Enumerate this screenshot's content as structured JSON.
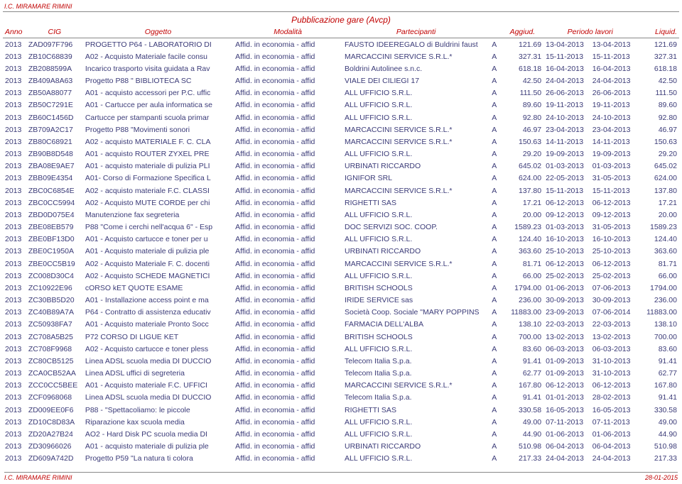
{
  "org": "I.C. MIRAMARE RIMINI",
  "title": "Pubblicazione gare (Avcp)",
  "footer_date": "28-01-2015",
  "columns": [
    "Anno",
    "CIG",
    "Oggetto",
    "Modalità",
    "Partecipanti",
    "",
    "Aggiud.",
    "Periodo lavori",
    "",
    "Liquid."
  ],
  "rows": [
    {
      "anno": "2013",
      "cig": "ZAD097F796",
      "ogg": "PROGETTO P64 - LABORATORIO DI",
      "mod": "Affid. in economia - affid",
      "part": "FAUSTO IDEEREGALO di Buldrini faust",
      "agg": "A",
      "aggv": "121.69",
      "d1": "13-04-2013",
      "d2": "13-04-2013",
      "liq": "121.69"
    },
    {
      "anno": "2013",
      "cig": "ZB10C68839",
      "ogg": "A02 - Acquisto Materiale facile consu",
      "mod": "Affid. in economia - affid",
      "part": "MARCACCINI SERVICE S.R.L.*",
      "agg": "A",
      "aggv": "327.31",
      "d1": "15-11-2013",
      "d2": "15-11-2013",
      "liq": "327.31"
    },
    {
      "anno": "2013",
      "cig": "ZB2088599A",
      "ogg": "Incarico trasporto visita guidata a Rav",
      "mod": "Affid. in economia - affid",
      "part": "Boldrini Autolinee s.n.c.",
      "agg": "A",
      "aggv": "618.18",
      "d1": "16-04-2013",
      "d2": "16-04-2013",
      "liq": "618.18"
    },
    {
      "anno": "2013",
      "cig": "ZB409A8A63",
      "ogg": "Progetto P88 &quot; BIBLIOTECA SC",
      "mod": "Affid. in economia - affid",
      "part": "VIALE DEI CILIEGI 17",
      "agg": "A",
      "aggv": "42.50",
      "d1": "24-04-2013",
      "d2": "24-04-2013",
      "liq": "42.50"
    },
    {
      "anno": "2013",
      "cig": "ZB50A88077",
      "ogg": "A01 - acquisto accessori per P.C. uffic",
      "mod": "Affid. in economia - affid",
      "part": "ALL UFFICIO S.R.L.",
      "agg": "A",
      "aggv": "111.50",
      "d1": "26-06-2013",
      "d2": "26-06-2013",
      "liq": "111.50"
    },
    {
      "anno": "2013",
      "cig": "ZB50C7291E",
      "ogg": "A01 - Cartucce per aula informatica se",
      "mod": "Affid. in economia - affid",
      "part": "ALL UFFICIO S.R.L.",
      "agg": "A",
      "aggv": "89.60",
      "d1": "19-11-2013",
      "d2": "19-11-2013",
      "liq": "89.60"
    },
    {
      "anno": "2013",
      "cig": "ZB60C1456D",
      "ogg": "Cartucce per stampanti scuola primar",
      "mod": "Affid. in economia - affid",
      "part": "ALL UFFICIO S.R.L.",
      "agg": "A",
      "aggv": "92.80",
      "d1": "24-10-2013",
      "d2": "24-10-2013",
      "liq": "92.80"
    },
    {
      "anno": "2013",
      "cig": "ZB709A2C17",
      "ogg": "Progetto P88 &quot;Movimenti sonori",
      "mod": "Affid. in economia - affid",
      "part": "MARCACCINI SERVICE S.R.L.*",
      "agg": "A",
      "aggv": "46.97",
      "d1": "23-04-2013",
      "d2": "23-04-2013",
      "liq": "46.97"
    },
    {
      "anno": "2013",
      "cig": "ZB80C68921",
      "ogg": "A02 - acquisto MATERIALE F. C. CLA",
      "mod": "Affid. in economia - affid",
      "part": "MARCACCINI SERVICE S.R.L.*",
      "agg": "A",
      "aggv": "150.63",
      "d1": "14-11-2013",
      "d2": "14-11-2013",
      "liq": "150.63"
    },
    {
      "anno": "2013",
      "cig": "ZB90B8D548",
      "ogg": "A01 - acquisto ROUTER ZYXEL PRE",
      "mod": "Affid. in economia - affid",
      "part": "ALL UFFICIO S.R.L.",
      "agg": "A",
      "aggv": "29.20",
      "d1": "19-09-2013",
      "d2": "19-09-2013",
      "liq": "29.20"
    },
    {
      "anno": "2013",
      "cig": "ZBA08E9AE7",
      "ogg": "A01 - acquisto materiale di pulizia PLI",
      "mod": "Affid. in economia - affid",
      "part": "URBINATI RICCARDO",
      "agg": "A",
      "aggv": "645.02",
      "d1": "01-03-2013",
      "d2": "01-03-2013",
      "liq": "645.02"
    },
    {
      "anno": "2013",
      "cig": "ZBB09E4354",
      "ogg": "A01- Corso di Formazione Specifica L",
      "mod": "Affid. in economia - affid",
      "part": "IGNIFOR SRL",
      "agg": "A",
      "aggv": "624.00",
      "d1": "22-05-2013",
      "d2": "31-05-2013",
      "liq": "624.00"
    },
    {
      "anno": "2013",
      "cig": "ZBC0C6854E",
      "ogg": "A02 - acquisto materiale F.C. CLASSI",
      "mod": "Affid. in economia - affid",
      "part": "MARCACCINI SERVICE S.R.L.*",
      "agg": "A",
      "aggv": "137.80",
      "d1": "15-11-2013",
      "d2": "15-11-2013",
      "liq": "137.80"
    },
    {
      "anno": "2013",
      "cig": "ZBC0CC5994",
      "ogg": "A02 - Acquisto MUTE CORDE per chi",
      "mod": "Affid. in economia - affid",
      "part": "RIGHETTI SAS",
      "agg": "A",
      "aggv": "17.21",
      "d1": "06-12-2013",
      "d2": "06-12-2013",
      "liq": "17.21"
    },
    {
      "anno": "2013",
      "cig": "ZBD0D075E4",
      "ogg": "Manutenzione fax segreteria",
      "mod": "Affid. in economia - affid",
      "part": "ALL UFFICIO S.R.L.",
      "agg": "A",
      "aggv": "20.00",
      "d1": "09-12-2013",
      "d2": "09-12-2013",
      "liq": "20.00"
    },
    {
      "anno": "2013",
      "cig": "ZBE08EB579",
      "ogg": "P88 \"Come i cerchi nell'acqua 6\" - Esp",
      "mod": "Affid. in economia - affid",
      "part": "DOC SERVIZI SOC. COOP.",
      "agg": "A",
      "aggv": "1589.23",
      "d1": "01-03-2013",
      "d2": "31-05-2013",
      "liq": "1589.23"
    },
    {
      "anno": "2013",
      "cig": "ZBE0BF13D0",
      "ogg": "A01 - Acquisto cartucce  e toner per u",
      "mod": "Affid. in economia - affid",
      "part": "ALL UFFICIO S.R.L.",
      "agg": "A",
      "aggv": "124.40",
      "d1": "16-10-2013",
      "d2": "16-10-2013",
      "liq": "124.40"
    },
    {
      "anno": "2013",
      "cig": "ZBE0C1950A",
      "ogg": "A01 - Acquisto materiale di pulizia ple",
      "mod": "Affid. in economia - affid",
      "part": "URBINATI RICCARDO",
      "agg": "A",
      "aggv": "363.60",
      "d1": "25-10-2013",
      "d2": "25-10-2013",
      "liq": "363.60"
    },
    {
      "anno": "2013",
      "cig": "ZBE0CC5B19",
      "ogg": "A02 - Acquisto Materiale F. C. docenti",
      "mod": "Affid. in economia - affid",
      "part": "MARCACCINI SERVICE S.R.L.*",
      "agg": "A",
      "aggv": "81.71",
      "d1": "06-12-2013",
      "d2": "06-12-2013",
      "liq": "81.71"
    },
    {
      "anno": "2013",
      "cig": "ZC008D30C4",
      "ogg": "A02 - Acquisto SCHEDE MAGNETICI",
      "mod": "Affid. in economia - affid",
      "part": "ALL UFFICIO S.R.L.",
      "agg": "A",
      "aggv": "66.00",
      "d1": "25-02-2013",
      "d2": "25-02-2013",
      "liq": "66.00"
    },
    {
      "anno": "2013",
      "cig": "ZC10922E96",
      "ogg": "cORSO kET QUOTE ESAME",
      "mod": "Affid. in economia - affid",
      "part": "BRITISH SCHOOLS",
      "agg": "A",
      "aggv": "1794.00",
      "d1": "01-06-2013",
      "d2": "07-06-2013",
      "liq": "1794.00"
    },
    {
      "anno": "2013",
      "cig": "ZC30BB5D20",
      "ogg": "A01 - Installazione access point e ma",
      "mod": "Affid. in economia - affid",
      "part": "IRIDE SERVICE sas",
      "agg": "A",
      "aggv": "236.00",
      "d1": "30-09-2013",
      "d2": "30-09-2013",
      "liq": "236.00"
    },
    {
      "anno": "2013",
      "cig": "ZC40B89A7A",
      "ogg": "P64 - Contratto di assistenza educativ",
      "mod": "Affid. in economia - affid",
      "part": "Società Coop. Sociale \"MARY POPPINS",
      "agg": "A",
      "aggv": "11883.00",
      "d1": "23-09-2013",
      "d2": "07-06-2014",
      "liq": "11883.00"
    },
    {
      "anno": "2013",
      "cig": "ZC50938FA7",
      "ogg": "A01 - Acquisto materiale Pronto Socc",
      "mod": "Affid. in economia - affid",
      "part": "FARMACIA DELL'ALBA",
      "agg": "A",
      "aggv": "138.10",
      "d1": "22-03-2013",
      "d2": "22-03-2013",
      "liq": "138.10"
    },
    {
      "anno": "2013",
      "cig": "ZC708A5B25",
      "ogg": "P72 CORSO DI LIGUE KET",
      "mod": "Affid. in economia - affid",
      "part": "BRITISH SCHOOLS",
      "agg": "A",
      "aggv": "700.00",
      "d1": "13-02-2013",
      "d2": "13-02-2013",
      "liq": "700.00"
    },
    {
      "anno": "2013",
      "cig": "ZC708F9968",
      "ogg": "A02 - Acquisto cartucce e toner pless",
      "mod": "Affid. in economia - affid",
      "part": "ALL UFFICIO S.R.L.",
      "agg": "A",
      "aggv": "83.60",
      "d1": "06-03-2013",
      "d2": "06-03-2013",
      "liq": "83.60"
    },
    {
      "anno": "2013",
      "cig": "ZC80CB5125",
      "ogg": "Linea ADSL scuola media DI DUCCIO",
      "mod": "Affid. in economia - affid",
      "part": "Telecom Italia S.p.a.",
      "agg": "A",
      "aggv": "91.41",
      "d1": "01-09-2013",
      "d2": "31-10-2013",
      "liq": "91.41"
    },
    {
      "anno": "2013",
      "cig": "ZCA0CB52AA",
      "ogg": "Linea ADSL uffici di segreteria",
      "mod": "Affid. in economia - affid",
      "part": "Telecom Italia S.p.a.",
      "agg": "A",
      "aggv": "62.77",
      "d1": "01-09-2013",
      "d2": "31-10-2013",
      "liq": "62.77"
    },
    {
      "anno": "2013",
      "cig": "ZCC0CC5BEE",
      "ogg": "A01 - Acquisto materiale F.C. UFFICI",
      "mod": "Affid. in economia - affid",
      "part": "MARCACCINI SERVICE S.R.L.*",
      "agg": "A",
      "aggv": "167.80",
      "d1": "06-12-2013",
      "d2": "06-12-2013",
      "liq": "167.80"
    },
    {
      "anno": "2013",
      "cig": "ZCF0968068",
      "ogg": "Linea ADSL scuola media DI DUCCIO",
      "mod": "Affid. in economia - affid",
      "part": "Telecom Italia S.p.a.",
      "agg": "A",
      "aggv": "91.41",
      "d1": "01-01-2013",
      "d2": "28-02-2013",
      "liq": "91.41"
    },
    {
      "anno": "2013",
      "cig": "ZD009EE0F6",
      "ogg": "P88 - &quot;Spettacoliamo: le piccole",
      "mod": "Affid. in economia - affid",
      "part": "RIGHETTI SAS",
      "agg": "A",
      "aggv": "330.58",
      "d1": "16-05-2013",
      "d2": "16-05-2013",
      "liq": "330.58"
    },
    {
      "anno": "2013",
      "cig": "ZD10C8D83A",
      "ogg": "Riparazione kax scuola media",
      "mod": "Affid. in economia - affid",
      "part": "ALL UFFICIO S.R.L.",
      "agg": "A",
      "aggv": "49.00",
      "d1": "07-11-2013",
      "d2": "07-11-2013",
      "liq": "49.00"
    },
    {
      "anno": "2013",
      "cig": "ZD20A27B24",
      "ogg": "AO2 - Hard Disk PC scuola media DI",
      "mod": "Affid. in economia - affid",
      "part": "ALL UFFICIO S.R.L.",
      "agg": "A",
      "aggv": "44.90",
      "d1": "01-06-2013",
      "d2": "01-06-2013",
      "liq": "44.90"
    },
    {
      "anno": "2013",
      "cig": "ZD30966026",
      "ogg": "A01 - acquisto materiale di pulizia ple",
      "mod": "Affid. in economia - affid",
      "part": "URBINATI RICCARDO",
      "agg": "A",
      "aggv": "510.98",
      "d1": "06-04-2013",
      "d2": "06-04-2013",
      "liq": "510.98"
    },
    {
      "anno": "2013",
      "cig": "ZD609A742D",
      "ogg": "Progetto P59 &quot;La natura ti colora",
      "mod": "Affid. in economia - affid",
      "part": "ALL UFFICIO S.R.L.",
      "agg": "A",
      "aggv": "217.33",
      "d1": "24-04-2013",
      "d2": "24-04-2013",
      "liq": "217.33"
    }
  ]
}
